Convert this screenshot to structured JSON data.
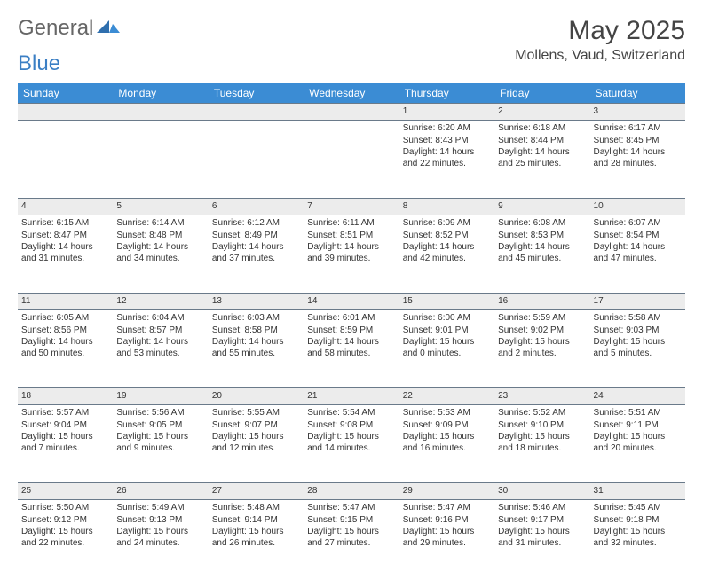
{
  "brand": {
    "part1": "General",
    "part2": "Blue"
  },
  "title": "May 2025",
  "location": "Mollens, Vaud, Switzerland",
  "colors": {
    "header_bg": "#3b8cd4",
    "header_text": "#ffffff",
    "daynum_bg": "#ececec",
    "border": "#5f7080",
    "brand_blue": "#3b7fc4"
  },
  "weekdays": [
    "Sunday",
    "Monday",
    "Tuesday",
    "Wednesday",
    "Thursday",
    "Friday",
    "Saturday"
  ],
  "weeks": [
    {
      "days": [
        null,
        null,
        null,
        null,
        {
          "n": "1",
          "sunrise": "6:20 AM",
          "sunset": "8:43 PM",
          "daylight": "14 hours and 22 minutes."
        },
        {
          "n": "2",
          "sunrise": "6:18 AM",
          "sunset": "8:44 PM",
          "daylight": "14 hours and 25 minutes."
        },
        {
          "n": "3",
          "sunrise": "6:17 AM",
          "sunset": "8:45 PM",
          "daylight": "14 hours and 28 minutes."
        }
      ]
    },
    {
      "days": [
        {
          "n": "4",
          "sunrise": "6:15 AM",
          "sunset": "8:47 PM",
          "daylight": "14 hours and 31 minutes."
        },
        {
          "n": "5",
          "sunrise": "6:14 AM",
          "sunset": "8:48 PM",
          "daylight": "14 hours and 34 minutes."
        },
        {
          "n": "6",
          "sunrise": "6:12 AM",
          "sunset": "8:49 PM",
          "daylight": "14 hours and 37 minutes."
        },
        {
          "n": "7",
          "sunrise": "6:11 AM",
          "sunset": "8:51 PM",
          "daylight": "14 hours and 39 minutes."
        },
        {
          "n": "8",
          "sunrise": "6:09 AM",
          "sunset": "8:52 PM",
          "daylight": "14 hours and 42 minutes."
        },
        {
          "n": "9",
          "sunrise": "6:08 AM",
          "sunset": "8:53 PM",
          "daylight": "14 hours and 45 minutes."
        },
        {
          "n": "10",
          "sunrise": "6:07 AM",
          "sunset": "8:54 PM",
          "daylight": "14 hours and 47 minutes."
        }
      ]
    },
    {
      "days": [
        {
          "n": "11",
          "sunrise": "6:05 AM",
          "sunset": "8:56 PM",
          "daylight": "14 hours and 50 minutes."
        },
        {
          "n": "12",
          "sunrise": "6:04 AM",
          "sunset": "8:57 PM",
          "daylight": "14 hours and 53 minutes."
        },
        {
          "n": "13",
          "sunrise": "6:03 AM",
          "sunset": "8:58 PM",
          "daylight": "14 hours and 55 minutes."
        },
        {
          "n": "14",
          "sunrise": "6:01 AM",
          "sunset": "8:59 PM",
          "daylight": "14 hours and 58 minutes."
        },
        {
          "n": "15",
          "sunrise": "6:00 AM",
          "sunset": "9:01 PM",
          "daylight": "15 hours and 0 minutes."
        },
        {
          "n": "16",
          "sunrise": "5:59 AM",
          "sunset": "9:02 PM",
          "daylight": "15 hours and 2 minutes."
        },
        {
          "n": "17",
          "sunrise": "5:58 AM",
          "sunset": "9:03 PM",
          "daylight": "15 hours and 5 minutes."
        }
      ]
    },
    {
      "days": [
        {
          "n": "18",
          "sunrise": "5:57 AM",
          "sunset": "9:04 PM",
          "daylight": "15 hours and 7 minutes."
        },
        {
          "n": "19",
          "sunrise": "5:56 AM",
          "sunset": "9:05 PM",
          "daylight": "15 hours and 9 minutes."
        },
        {
          "n": "20",
          "sunrise": "5:55 AM",
          "sunset": "9:07 PM",
          "daylight": "15 hours and 12 minutes."
        },
        {
          "n": "21",
          "sunrise": "5:54 AM",
          "sunset": "9:08 PM",
          "daylight": "15 hours and 14 minutes."
        },
        {
          "n": "22",
          "sunrise": "5:53 AM",
          "sunset": "9:09 PM",
          "daylight": "15 hours and 16 minutes."
        },
        {
          "n": "23",
          "sunrise": "5:52 AM",
          "sunset": "9:10 PM",
          "daylight": "15 hours and 18 minutes."
        },
        {
          "n": "24",
          "sunrise": "5:51 AM",
          "sunset": "9:11 PM",
          "daylight": "15 hours and 20 minutes."
        }
      ]
    },
    {
      "days": [
        {
          "n": "25",
          "sunrise": "5:50 AM",
          "sunset": "9:12 PM",
          "daylight": "15 hours and 22 minutes."
        },
        {
          "n": "26",
          "sunrise": "5:49 AM",
          "sunset": "9:13 PM",
          "daylight": "15 hours and 24 minutes."
        },
        {
          "n": "27",
          "sunrise": "5:48 AM",
          "sunset": "9:14 PM",
          "daylight": "15 hours and 26 minutes."
        },
        {
          "n": "28",
          "sunrise": "5:47 AM",
          "sunset": "9:15 PM",
          "daylight": "15 hours and 27 minutes."
        },
        {
          "n": "29",
          "sunrise": "5:47 AM",
          "sunset": "9:16 PM",
          "daylight": "15 hours and 29 minutes."
        },
        {
          "n": "30",
          "sunrise": "5:46 AM",
          "sunset": "9:17 PM",
          "daylight": "15 hours and 31 minutes."
        },
        {
          "n": "31",
          "sunrise": "5:45 AM",
          "sunset": "9:18 PM",
          "daylight": "15 hours and 32 minutes."
        }
      ]
    }
  ],
  "labels": {
    "sunrise": "Sunrise: ",
    "sunset": "Sunset: ",
    "daylight": "Daylight: "
  }
}
